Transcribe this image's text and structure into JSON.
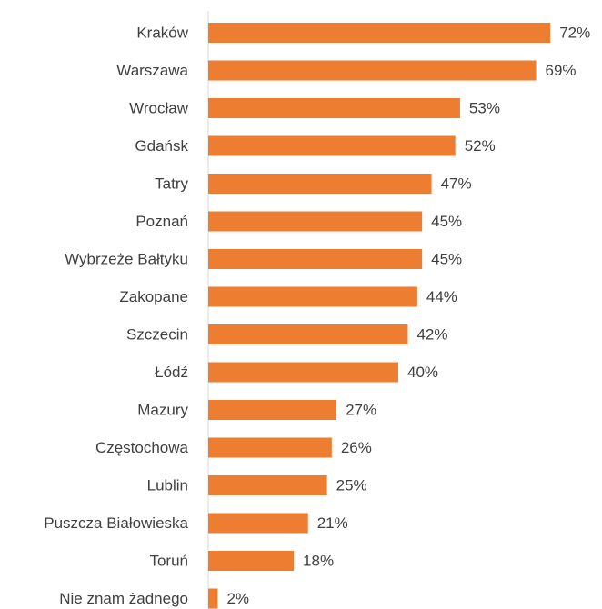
{
  "chart_data": {
    "type": "bar",
    "orientation": "horizontal",
    "categories": [
      "Kraków",
      "Warszawa",
      "Wrocław",
      "Gdańsk",
      "Tatry",
      "Poznań",
      "Wybrzeże Bałtyku",
      "Zakopane",
      "Szczecin",
      "Łódź",
      "Mazury",
      "Częstochowa",
      "Lublin",
      "Puszcza Białowieska",
      "Toruń",
      "Nie znam żadnego"
    ],
    "values": [
      72,
      69,
      53,
      52,
      47,
      45,
      45,
      44,
      42,
      40,
      27,
      26,
      25,
      21,
      18,
      2
    ],
    "value_labels": [
      "72%",
      "69%",
      "53%",
      "52%",
      "47%",
      "45%",
      "45%",
      "44%",
      "42%",
      "40%",
      "27%",
      "26%",
      "25%",
      "21%",
      "18%",
      "2%"
    ],
    "color": "#ed7d31",
    "xlim": [
      0,
      80
    ]
  }
}
